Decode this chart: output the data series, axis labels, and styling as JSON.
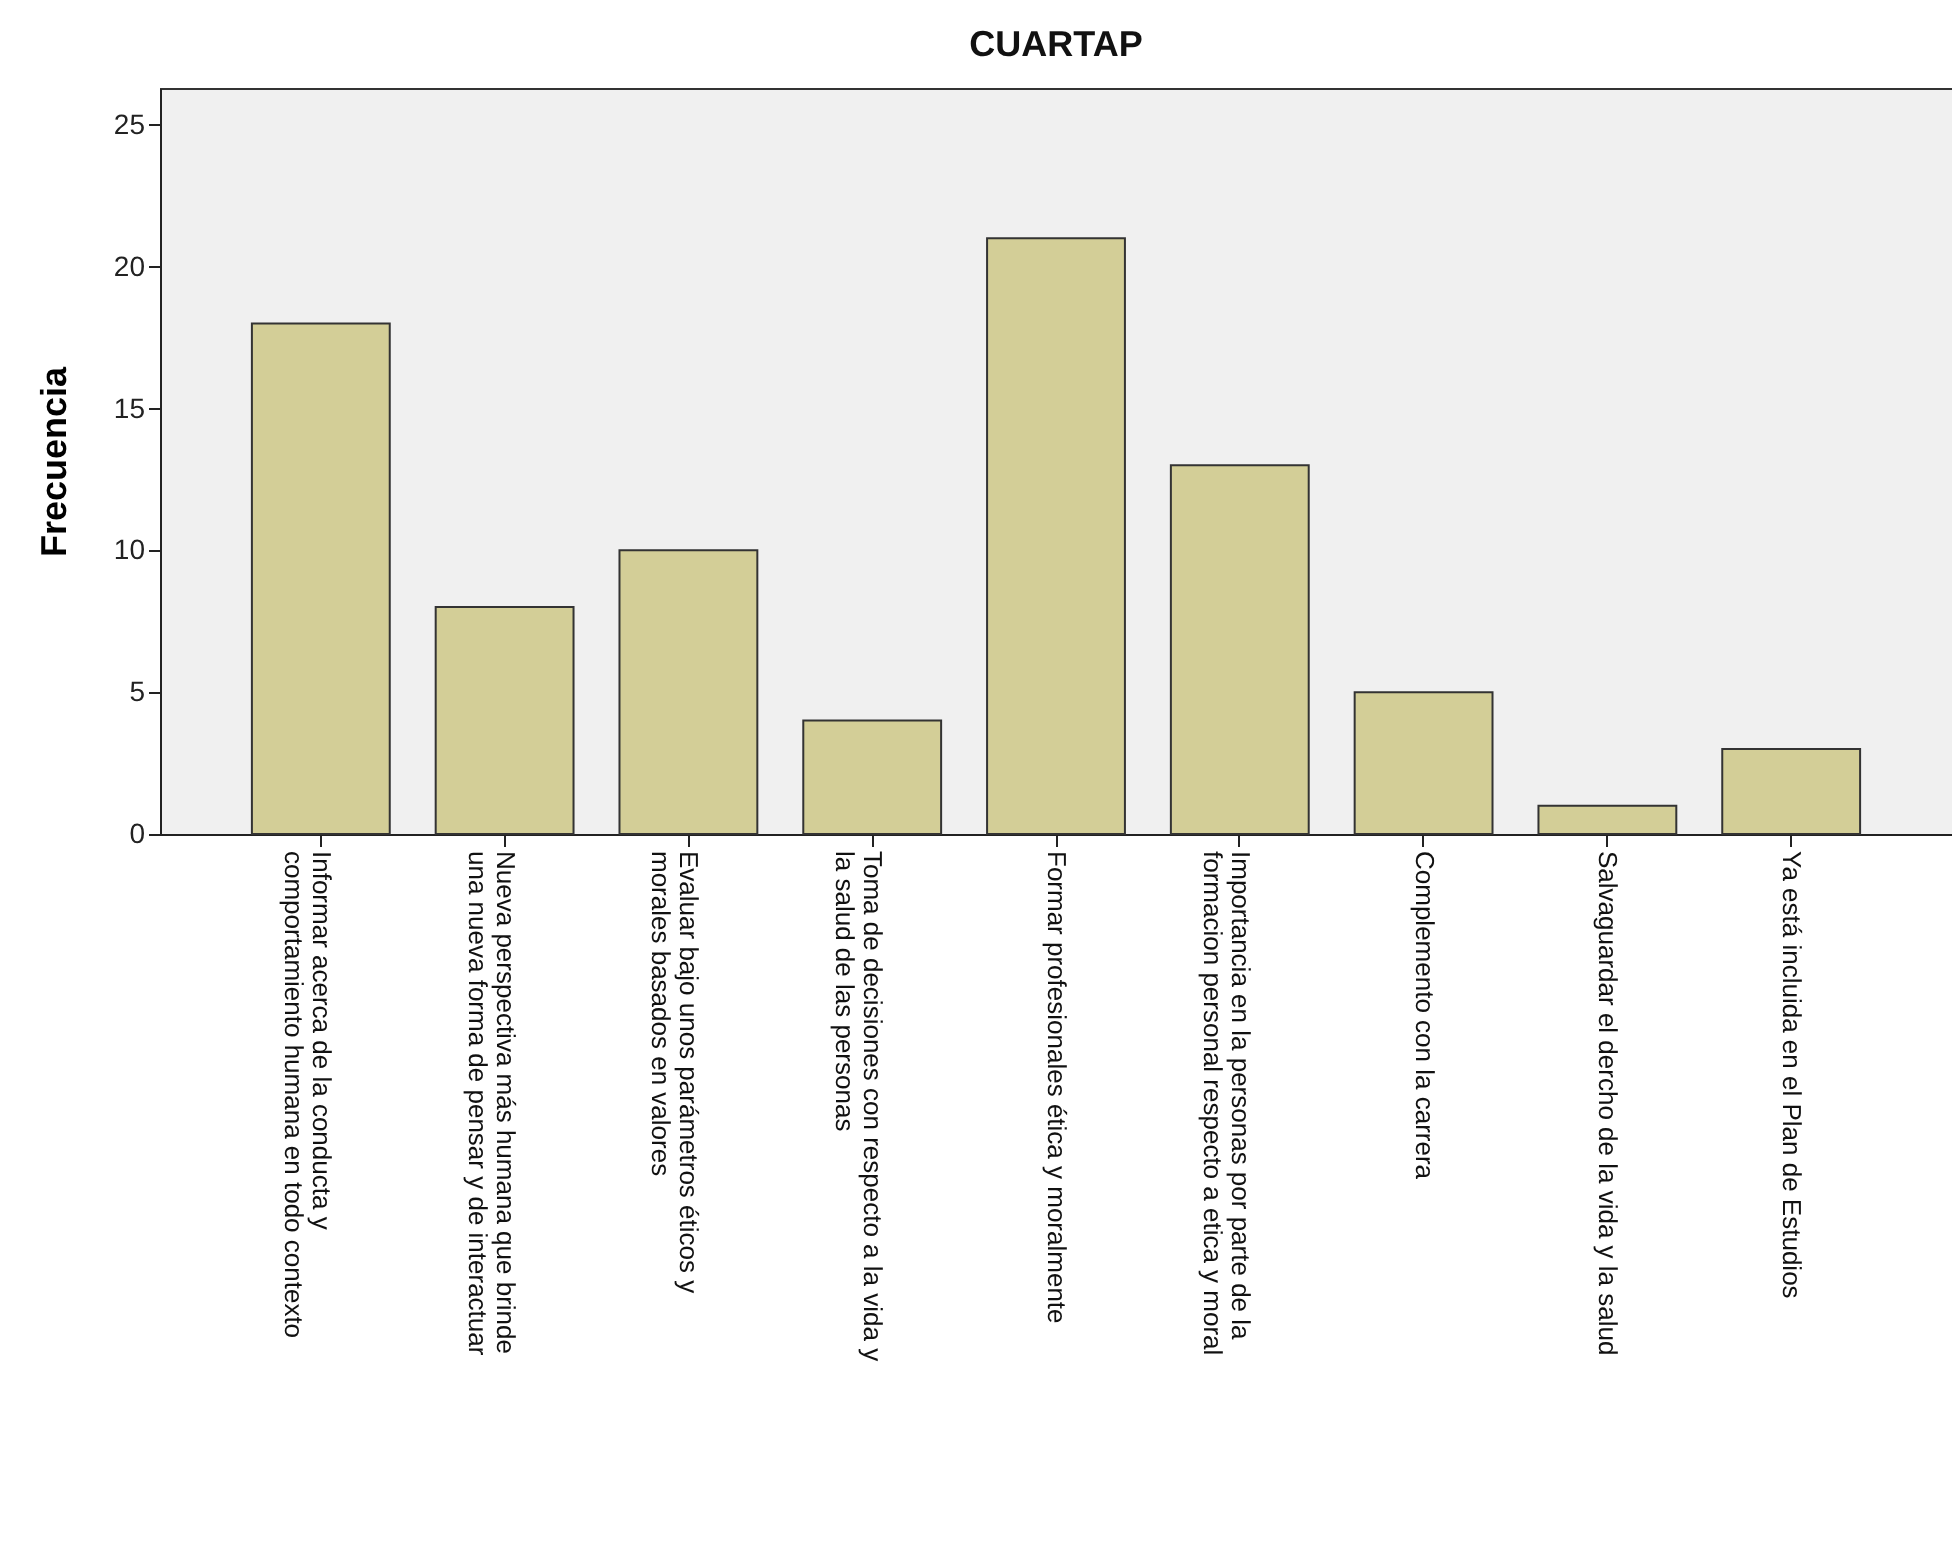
{
  "chart_data": {
    "type": "bar",
    "title": "CUARTAP",
    "ylabel": "Frecuencia",
    "categories": [
      "Informar acerca de la conducta  y\ncomportamiento humana en todo contexto",
      "Nueva perspectiva más humana que brinde\nuna nueva forma de pensar y de interactuar",
      "Evaluar bajo unos parámetros éticos y\nmorales basados en valores",
      "Toma de decisiones con respecto a la vida y\nla salud de las personas",
      "Formar profesionales ética y moralmente",
      "Importancia en la personas por parte de la\nformacion personal respecto a etica y moral",
      "Complemento con la carrera",
      "Salvaguardar  el dercho de la vida y la salud",
      "Ya está incluida en el Plan de Estudios"
    ],
    "values": [
      18,
      8,
      10,
      4,
      21,
      13,
      5,
      1,
      3
    ],
    "color": "#d3ce97",
    "ylim": [
      0,
      26.3
    ],
    "yticks": [
      0,
      5,
      10,
      15,
      20,
      25
    ],
    "grid": false
  }
}
